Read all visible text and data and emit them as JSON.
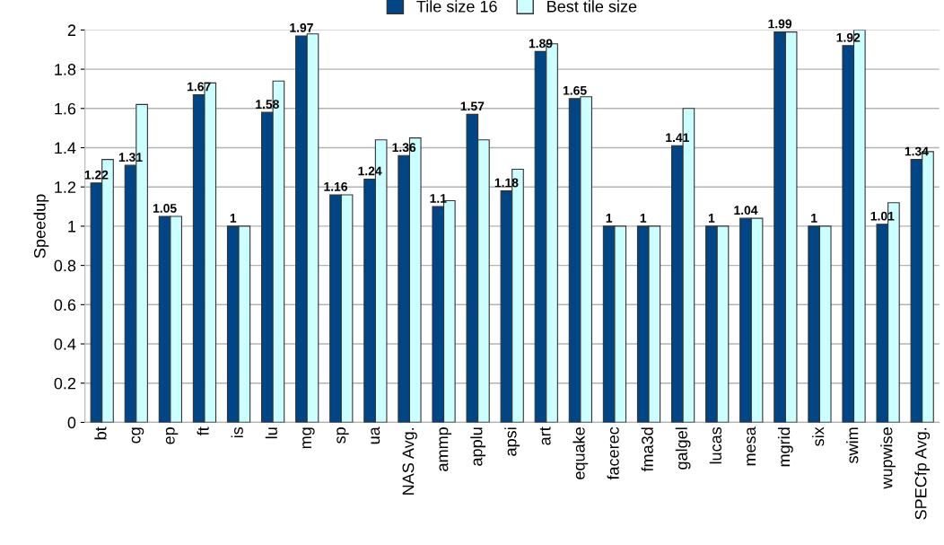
{
  "chart_data": {
    "type": "bar",
    "ylabel": "Speedup",
    "categories": [
      "bt",
      "cg",
      "ep",
      "ft",
      "is",
      "lu",
      "mg",
      "sp",
      "ua",
      "NAS Avg.",
      "ammp",
      "applu",
      "apsi",
      "art",
      "equake",
      "facerec",
      "fma3d",
      "galgel",
      "lucas",
      "mesa",
      "mgrid",
      "six",
      "swim",
      "wupwise",
      "SPECfp Avg."
    ],
    "series": [
      {
        "name": "Tile size 16",
        "color": "#004586",
        "values": [
          1.22,
          1.31,
          1.05,
          1.67,
          1,
          1.58,
          1.97,
          1.16,
          1.24,
          1.36,
          1.1,
          1.57,
          1.18,
          1.89,
          1.65,
          1,
          1,
          1.41,
          1,
          1.04,
          1.99,
          1,
          1.92,
          1.01,
          1.34
        ],
        "value_labels": [
          "1.22",
          "1.31",
          "1.05",
          "1.67",
          "1",
          "1.58",
          "1.97",
          "1.16",
          "1.24",
          "1.36",
          "1.1",
          "1.57",
          "1.18",
          "1.89",
          "1.65",
          "1",
          "1",
          "1.41",
          "1",
          "1.04",
          "1.99",
          "1",
          "1.92",
          "1.01",
          "1.34"
        ]
      },
      {
        "name": "Best tile size",
        "color": "#ccffff",
        "values": [
          1.34,
          1.62,
          1.05,
          1.73,
          1,
          1.74,
          1.98,
          1.16,
          1.44,
          1.45,
          1.13,
          1.44,
          1.29,
          1.93,
          1.66,
          1,
          1,
          1.6,
          1,
          1.04,
          1.99,
          1,
          2.0,
          1.12,
          1.38
        ]
      }
    ],
    "ylim": [
      0,
      2
    ],
    "yticks": [
      0,
      0.2,
      0.4,
      0.6,
      0.8,
      1,
      1.2,
      1.4,
      1.6,
      1.8,
      2
    ],
    "grid": "y",
    "legend": "top"
  }
}
